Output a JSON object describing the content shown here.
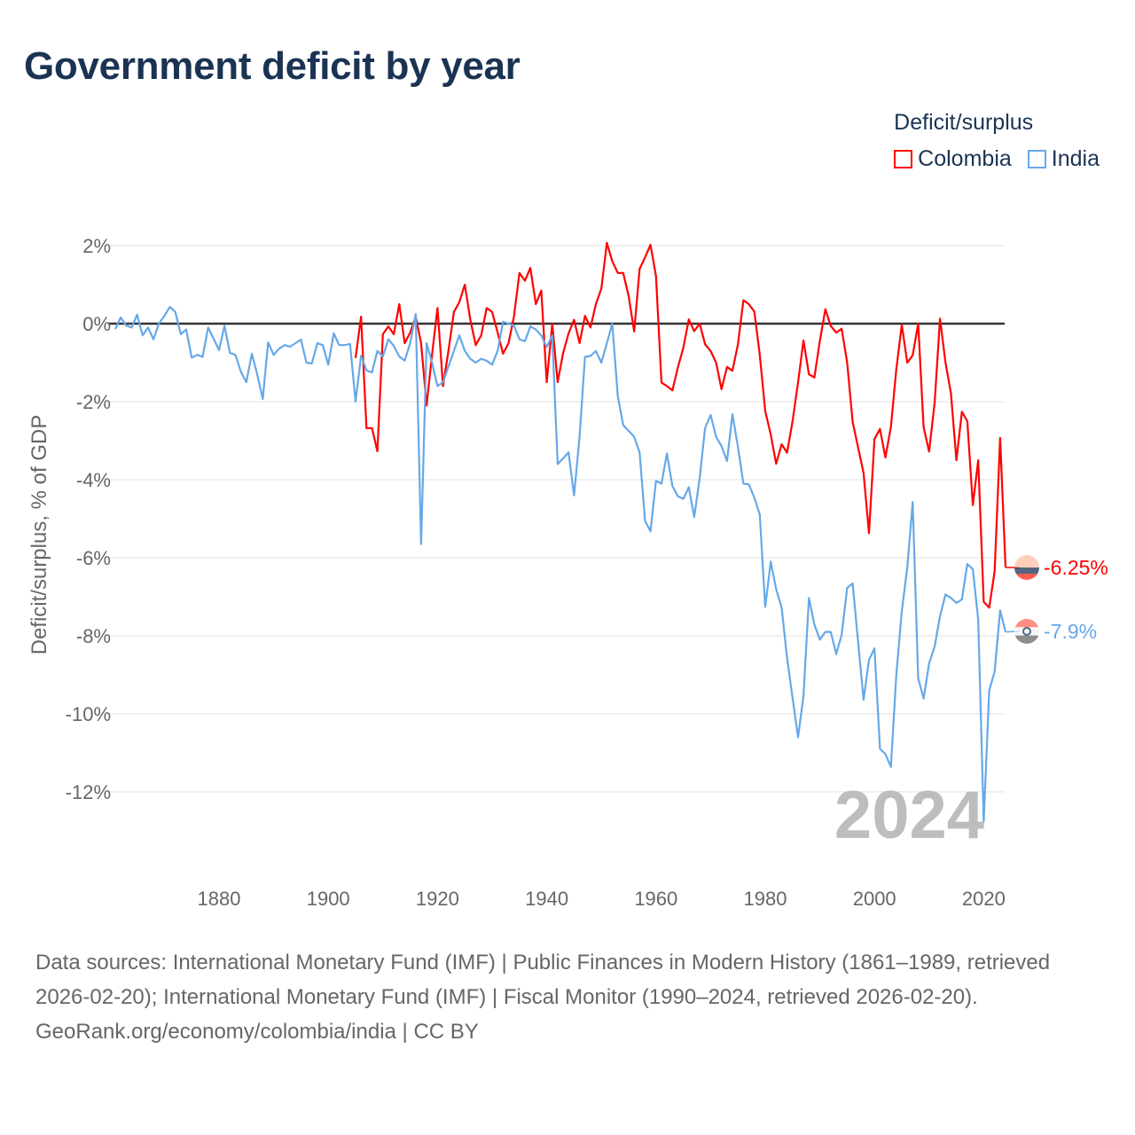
{
  "title": "Government deficit by year",
  "legend": {
    "title": "Deficit/surplus",
    "placement": "top-right"
  },
  "current_year_label": "2024",
  "footer": {
    "sources": "Data sources: International Monetary Fund (IMF) | Public Finances in Modern History (1861–1989, retrieved 2026-02-20); International Monetary Fund (IMF) | Fiscal Monitor (1990–2024, retrieved 2026-02-20).",
    "credit": "GeoRank.org/economy/colombia/india | CC BY"
  },
  "chart_data": {
    "type": "line",
    "title": "Government deficit by year",
    "xlabel": "",
    "ylabel": "Deficit/surplus, % of GDP",
    "xlim": [
      1861,
      2024
    ],
    "ylim": [
      -13,
      2.5
    ],
    "x_ticks": [
      1880,
      1900,
      1920,
      1940,
      1960,
      1980,
      2000,
      2020
    ],
    "y_ticks": [
      2,
      0,
      -2,
      -4,
      -6,
      -8,
      -10,
      -12
    ],
    "y_tick_labels": [
      "2%",
      "0%",
      "-2%",
      "-4%",
      "-6%",
      "-8%",
      "-10%",
      "-12%"
    ],
    "grid": true,
    "series": [
      {
        "name": "Colombia",
        "color": "#ff0000",
        "start_year": 1905,
        "end_label": "-6.25%",
        "flag": "colombia-flag",
        "values": [
          -0.88,
          0.18,
          -2.68,
          -2.68,
          -3.27,
          -0.27,
          -0.07,
          -0.27,
          0.5,
          -0.5,
          -0.23,
          0.18,
          -0.5,
          -2.1,
          -0.8,
          0.4,
          -1.6,
          -0.7,
          0.3,
          0.55,
          1.0,
          0.1,
          -0.55,
          -0.3,
          0.4,
          0.3,
          -0.23,
          -0.77,
          -0.5,
          0.18,
          1.3,
          1.1,
          1.43,
          0.5,
          0.85,
          -1.5,
          0.0,
          -1.5,
          -0.75,
          -0.25,
          0.1,
          -0.5,
          0.2,
          -0.1,
          0.5,
          0.9,
          2.07,
          1.6,
          1.3,
          1.3,
          0.7,
          -0.2,
          1.4,
          1.7,
          2.02,
          1.22,
          -1.51,
          -1.6,
          -1.71,
          -1.13,
          -0.62,
          0.11,
          -0.19,
          0,
          -0.53,
          -0.7,
          -1.0,
          -1.68,
          -1.11,
          -1.21,
          -0.53,
          0.6,
          0.5,
          0.31,
          -0.79,
          -2.24,
          -2.84,
          -3.59,
          -3.09,
          -3.31,
          -2.5,
          -1.51,
          -0.43,
          -1.3,
          -1.38,
          -0.44,
          0.37,
          -0.06,
          -0.23,
          -0.13,
          -1.0,
          -2.52,
          -3.17,
          -3.83,
          -5.37,
          -2.96,
          -2.7,
          -3.43,
          -2.65,
          -1.17,
          -0.03,
          -1.0,
          -0.81,
          0,
          -2.65,
          -3.28,
          -2.04,
          0.13,
          -1.0,
          -1.78,
          -3.5,
          -2.26,
          -2.5,
          -4.65,
          -3.5,
          -7.13,
          -7.28,
          -6.35,
          -2.93,
          -6.25
        ]
      },
      {
        "name": "India",
        "color": "#66a8e8",
        "start_year": 1861,
        "end_label": "-7.9%",
        "flag": "india-flag",
        "values": [
          -0.14,
          0.16,
          -0.05,
          -0.1,
          0.23,
          -0.3,
          -0.1,
          -0.4,
          0.0,
          0.2,
          0.43,
          0.3,
          -0.27,
          -0.15,
          -0.87,
          -0.8,
          -0.85,
          -0.1,
          -0.38,
          -0.68,
          -0.05,
          -0.75,
          -0.8,
          -1.23,
          -1.5,
          -0.77,
          -1.3,
          -1.93,
          -0.48,
          -0.8,
          -0.64,
          -0.55,
          -0.59,
          -0.5,
          -0.41,
          -1.0,
          -1.02,
          -0.5,
          -0.55,
          -1.05,
          -0.25,
          -0.55,
          -0.55,
          -0.52,
          -2.0,
          -0.82,
          -1.2,
          -1.25,
          -0.7,
          -0.84,
          -0.4,
          -0.57,
          -0.84,
          -0.95,
          -0.5,
          0.25,
          -5.65,
          -0.5,
          -1.0,
          -1.6,
          -1.5,
          -1.1,
          -0.7,
          -0.3,
          -0.7,
          -0.9,
          -1.0,
          -0.9,
          -0.95,
          -1.05,
          -0.7,
          0.05,
          0,
          -0.05,
          -0.4,
          -0.45,
          -0.07,
          -0.15,
          -0.3,
          -0.6,
          -0.3,
          -3.6,
          -3.45,
          -3.3,
          -4.4,
          -2.9,
          -0.85,
          -0.83,
          -0.7,
          -1.0,
          -0.5,
          0,
          -1.85,
          -2.6,
          -2.75,
          -2.9,
          -3.3,
          -5.06,
          -5.32,
          -4.03,
          -4.1,
          -3.33,
          -4.16,
          -4.42,
          -4.49,
          -4.19,
          -4.96,
          -3.95,
          -2.67,
          -2.34,
          -2.9,
          -3.14,
          -3.52,
          -2.32,
          -3.16,
          -4.1,
          -4.12,
          -4.46,
          -4.89,
          -7.26,
          -6.1,
          -6.81,
          -7.28,
          -8.56,
          -9.59,
          -10.6,
          -9.55,
          -7.03,
          -7.71,
          -8.1,
          -7.9,
          -7.9,
          -8.47,
          -7.97,
          -6.77,
          -6.66,
          -8.15,
          -9.64,
          -8.62,
          -8.32,
          -10.9,
          -11.03,
          -11.36,
          -9.01,
          -7.37,
          -6.25,
          -4.57,
          -9.09,
          -9.61,
          -8.71,
          -8.28,
          -7.5,
          -6.94,
          -7.03,
          -7.16,
          -7.07,
          -6.16,
          -6.29,
          -7.59,
          -12.76,
          -9.4,
          -8.92,
          -7.35,
          -7.9
        ]
      }
    ]
  }
}
